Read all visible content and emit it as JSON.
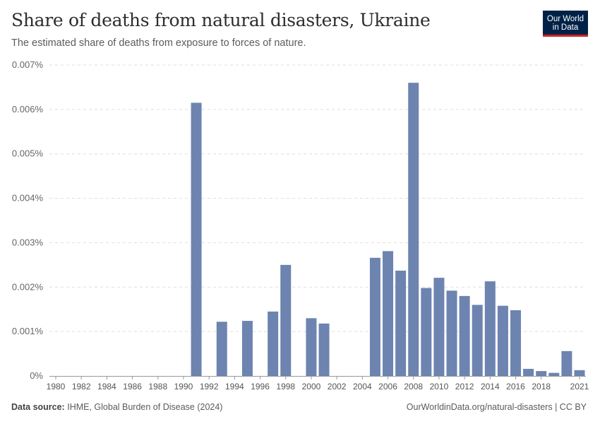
{
  "header": {
    "title": "Share of deaths from natural disasters, Ukraine",
    "subtitle": "The estimated share of deaths from exposure to forces of nature."
  },
  "logo": {
    "line1": "Our World",
    "line2": "in Data"
  },
  "footer": {
    "source_label": "Data source:",
    "source_text": "IHME, Global Burden of Disease (2024)",
    "url_text": "OurWorldinData.org/natural-disasters | CC BY"
  },
  "colors": {
    "bar": "#6d84b0",
    "grid": "#dddddd",
    "axis": "#999999"
  },
  "chart_data": {
    "type": "bar",
    "title": "Share of deaths from natural disasters, Ukraine",
    "xlabel": "",
    "ylabel": "",
    "ylim": [
      0,
      0.007
    ],
    "yticks": [
      0,
      0.001,
      0.002,
      0.003,
      0.004,
      0.005,
      0.006,
      0.007
    ],
    "ytick_labels": [
      "0%",
      "0.001%",
      "0.002%",
      "0.003%",
      "0.004%",
      "0.005%",
      "0.006%",
      "0.007%"
    ],
    "xlim": [
      1980,
      2021
    ],
    "xtick_labels": [
      "1980",
      "1982",
      "1984",
      "1986",
      "1988",
      "1990",
      "1992",
      "1994",
      "1996",
      "1998",
      "2000",
      "2002",
      "2004",
      "2006",
      "2008",
      "2010",
      "2012",
      "2014",
      "2016",
      "2018",
      "2021"
    ],
    "x": [
      1991,
      1993,
      1995,
      1997,
      1998,
      2000,
      2001,
      2005,
      2006,
      2007,
      2008,
      2009,
      2010,
      2011,
      2012,
      2013,
      2014,
      2015,
      2016,
      2017,
      2018,
      2019,
      2020,
      2021
    ],
    "values": [
      0.00615,
      0.00122,
      0.00124,
      0.00145,
      0.0025,
      0.0013,
      0.00118,
      0.00266,
      0.00281,
      0.00237,
      0.0066,
      0.00198,
      0.00221,
      0.00192,
      0.0018,
      0.0016,
      0.00213,
      0.00158,
      0.00148,
      0.00016,
      0.00011,
      7e-05,
      0.00056,
      0.00013
    ],
    "grid": true,
    "unit": "%"
  }
}
